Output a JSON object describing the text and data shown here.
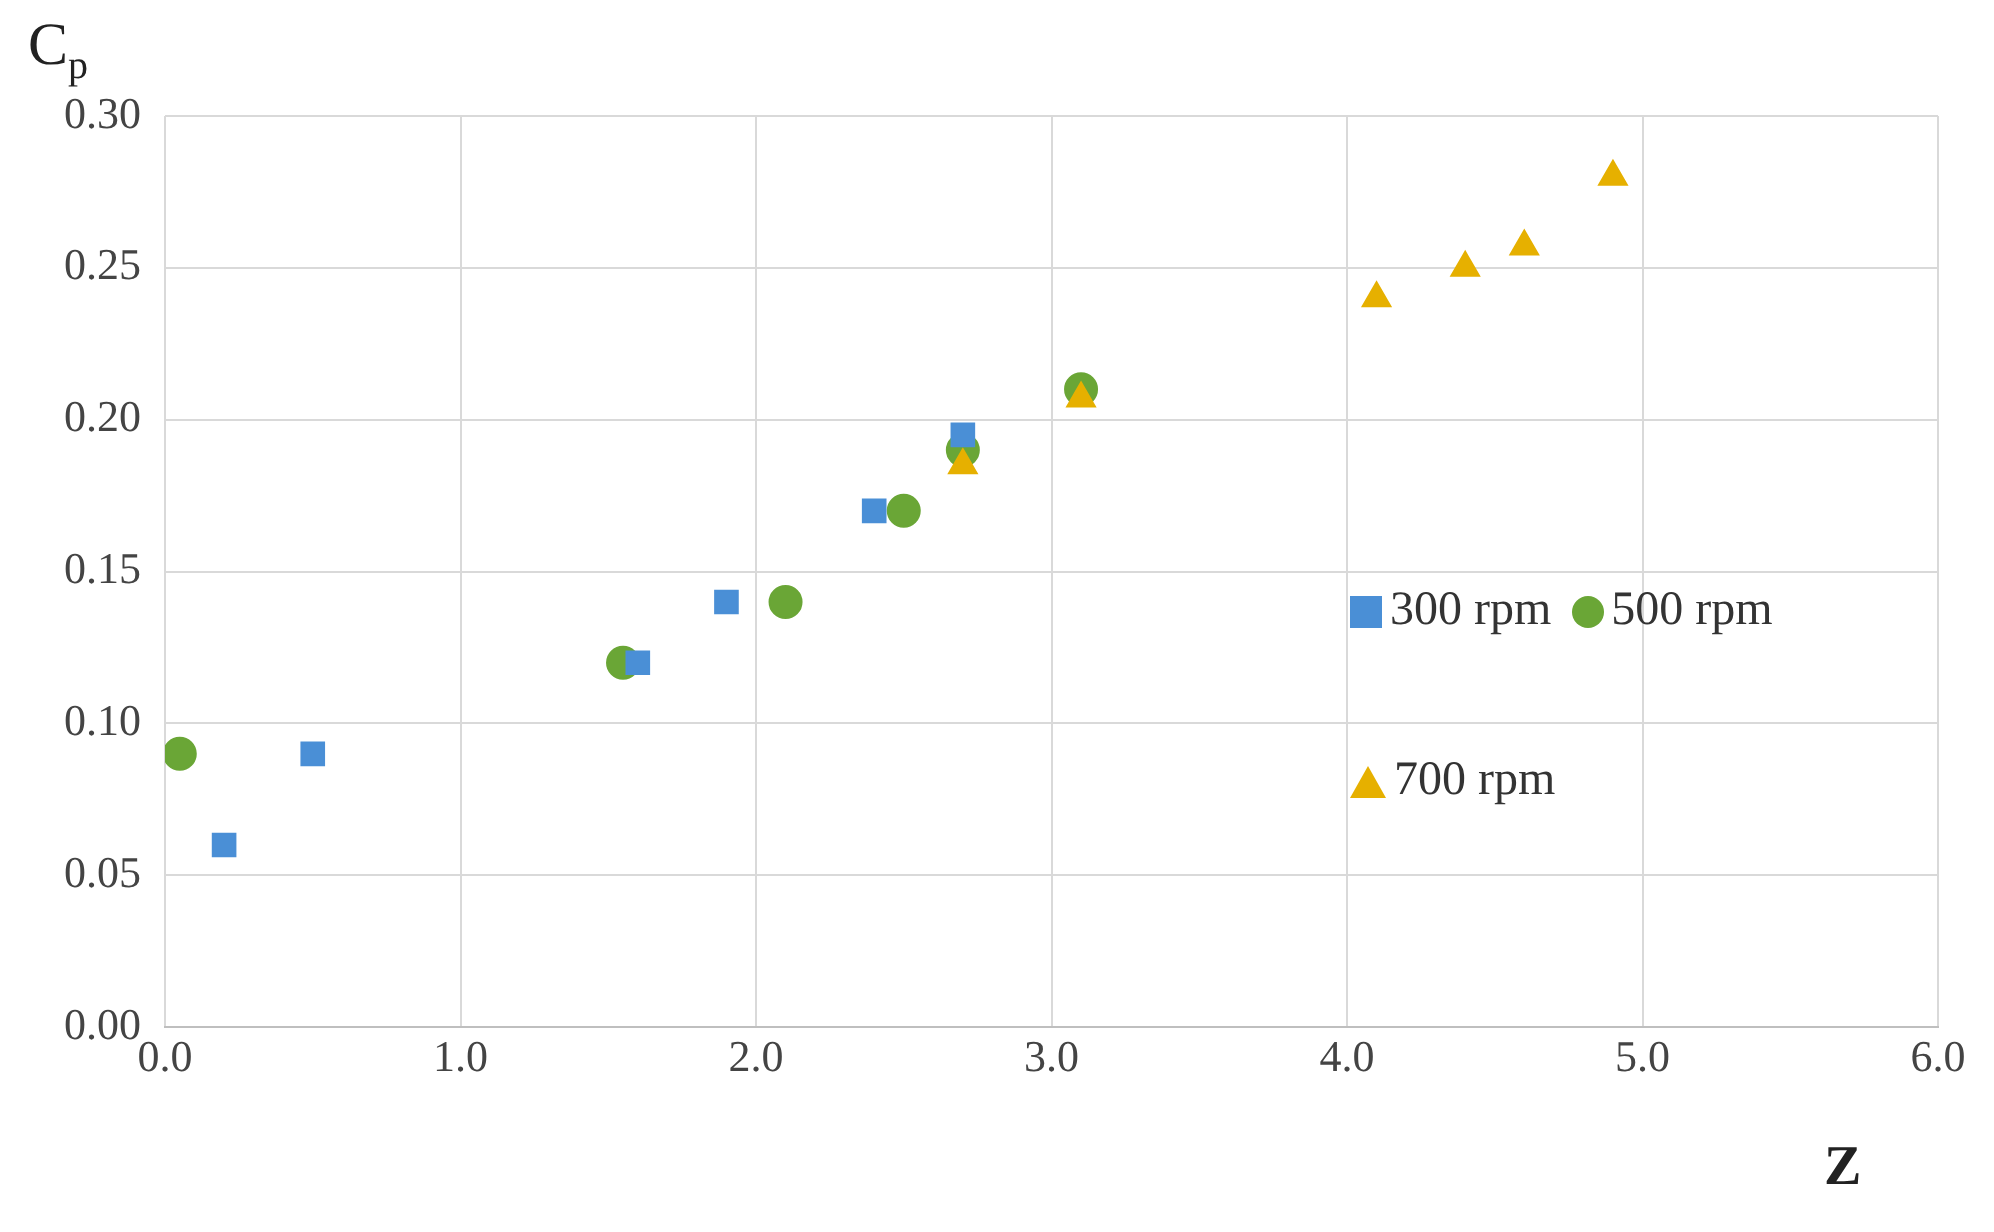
{
  "chart_data": {
    "type": "scatter",
    "xlabel": "Z",
    "ylabel": "C$_{p}$",
    "xlim": [
      0,
      6
    ],
    "xticks": [
      {
        "value": 0,
        "label": "0.0"
      },
      {
        "value": 1,
        "label": "1.0"
      },
      {
        "value": 2,
        "label": "2.0"
      },
      {
        "value": 3,
        "label": "3.0"
      },
      {
        "value": 4,
        "label": "4.0"
      },
      {
        "value": 5,
        "label": "5.0"
      },
      {
        "value": 6,
        "label": "6.0"
      }
    ],
    "ylim": [
      0,
      0.3
    ],
    "yticks": [
      {
        "value": 0,
        "label": "0.00"
      },
      {
        "value": 0.05,
        "label": "0.05"
      },
      {
        "value": 0.1,
        "label": "0.10"
      },
      {
        "value": 0.15,
        "label": "0.15"
      },
      {
        "value": 0.2,
        "label": "0.20"
      },
      {
        "value": 0.25,
        "label": "0.25"
      },
      {
        "value": 0.3,
        "label": "0.30"
      }
    ],
    "grid": true,
    "legend": "right",
    "series": [
      {
        "name": "300 rpm",
        "color": "#4a8fd6",
        "marker": "square",
        "x": [
          0.2,
          0.5,
          1.6,
          1.9,
          2.4,
          2.7
        ],
        "values": [
          0.06,
          0.09,
          0.12,
          0.14,
          0.17,
          0.195
        ]
      },
      {
        "name": "500 rpm",
        "color": "#6aa636",
        "marker": "circle",
        "x": [
          0.05,
          1.55,
          2.1,
          2.5,
          2.7,
          3.1
        ],
        "values": [
          0.09,
          0.12,
          0.14,
          0.17,
          0.19,
          0.21
        ]
      },
      {
        "name": "700 rpm",
        "color": "#e6b000",
        "marker": "triangle",
        "x": [
          2.7,
          3.1,
          4.1,
          4.4,
          4.6,
          4.9
        ],
        "values": [
          0.185,
          0.207,
          0.24,
          0.25,
          0.257,
          0.28
        ]
      }
    ]
  }
}
